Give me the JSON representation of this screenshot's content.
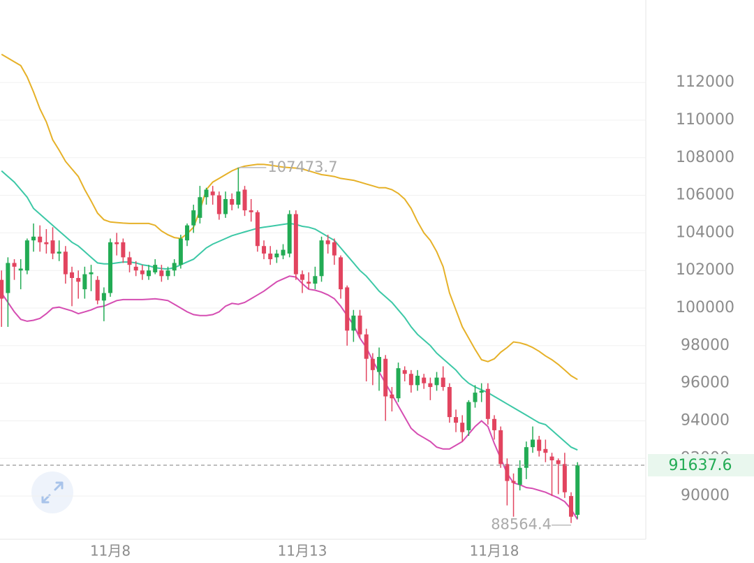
{
  "chart_data": {
    "type": "candlestick",
    "categories": [
      null,
      null,
      null,
      null,
      null,
      null,
      null,
      null,
      null,
      null,
      null,
      null,
      null,
      null,
      null,
      null,
      null,
      "11月8",
      null,
      null,
      null,
      null,
      null,
      null,
      null,
      null,
      null,
      null,
      null,
      null,
      null,
      null,
      null,
      null,
      null,
      null,
      null,
      null,
      null,
      null,
      null,
      null,
      null,
      null,
      null,
      null,
      null,
      "11月13",
      null,
      null,
      null,
      null,
      null,
      null,
      null,
      null,
      null,
      null,
      null,
      null,
      null,
      null,
      null,
      null,
      null,
      null,
      null,
      null,
      null,
      null,
      null,
      null,
      null,
      null,
      null,
      null,
      null,
      "11月18",
      null,
      null,
      null,
      null,
      null,
      null,
      null,
      null,
      null,
      null,
      null,
      null,
      null
    ],
    "open": [
      101500,
      100800,
      102400,
      102000,
      102000,
      103600,
      103800,
      103500,
      103600,
      102900,
      103000,
      101900,
      101600,
      101000,
      101800,
      101500,
      100400,
      100800,
      103500,
      103500,
      102700,
      102200,
      102000,
      101700,
      101900,
      102000,
      101700,
      102000,
      102300,
      103600,
      104400,
      104800,
      105900,
      106200,
      106000,
      105000,
      105800,
      105500,
      106300,
      105200,
      105100,
      103300,
      102900,
      102700,
      102800,
      102900,
      105000,
      101800,
      101400,
      101300,
      101700,
      103600,
      103500,
      102700,
      101100,
      98800,
      99600,
      98600,
      97300,
      96600,
      97300,
      95400,
      95200,
      96700,
      96500,
      95900,
      96300,
      96000,
      95900,
      96300,
      95800,
      94200,
      93900,
      93500,
      95000,
      95500,
      95700,
      94100,
      93500,
      91700,
      90800,
      90600,
      91500,
      92600,
      93000,
      92500,
      92100,
      91900,
      91700,
      90000,
      89000
    ],
    "high": [
      102000,
      102700,
      102600,
      102600,
      103700,
      104500,
      104400,
      104200,
      104300,
      103600,
      103300,
      102200,
      102000,
      102200,
      102300,
      101700,
      101100,
      103700,
      104000,
      103700,
      103000,
      102500,
      102300,
      102300,
      102600,
      102300,
      102200,
      102600,
      103900,
      104500,
      105500,
      106500,
      106400,
      106500,
      106200,
      106200,
      106100,
      107473.7,
      106500,
      105800,
      105200,
      103600,
      103300,
      103100,
      103400,
      105200,
      105200,
      102000,
      101900,
      102200,
      103800,
      103900,
      103700,
      102800,
      101200,
      99900,
      99900,
      98900,
      97600,
      97900,
      97500,
      95800,
      97100,
      96900,
      96700,
      96700,
      96500,
      96300,
      96600,
      96900,
      96000,
      94600,
      94300,
      95100,
      95900,
      96000,
      96000,
      94300,
      93700,
      92000,
      91200,
      91900,
      92900,
      93700,
      93200,
      93000,
      92300,
      92000,
      92300,
      90200,
      91800
    ],
    "low": [
      99000,
      99000,
      101500,
      101000,
      101800,
      103000,
      103000,
      102900,
      102600,
      102500,
      101300,
      100100,
      100500,
      100500,
      100900,
      100200,
      99300,
      100600,
      102800,
      102400,
      101900,
      101700,
      101500,
      101500,
      101800,
      101400,
      101500,
      101700,
      102100,
      103300,
      104000,
      104500,
      105500,
      105500,
      104700,
      104800,
      105200,
      105300,
      104900,
      104600,
      103000,
      102600,
      102300,
      102400,
      102600,
      102700,
      101500,
      100800,
      101000,
      101000,
      101400,
      102900,
      102300,
      100500,
      98000,
      98200,
      98400,
      96100,
      95900,
      95600,
      94000,
      94500,
      95000,
      96100,
      95500,
      95600,
      95700,
      95100,
      95600,
      95600,
      93900,
      93400,
      92900,
      93200,
      94700,
      95000,
      93800,
      93000,
      91500,
      89500,
      88900,
      90300,
      90900,
      92300,
      92100,
      91800,
      90000,
      90100,
      89900,
      88564.4,
      88800
    ],
    "close": [
      100500,
      102400,
      102200,
      102100,
      103600,
      103800,
      103500,
      103400,
      102900,
      103000,
      101800,
      101600,
      101400,
      101800,
      101900,
      100400,
      100800,
      103500,
      103400,
      102700,
      102300,
      102000,
      101800,
      102000,
      102300,
      101700,
      102000,
      102400,
      103700,
      104400,
      105200,
      105900,
      106300,
      106000,
      105000,
      105800,
      105500,
      106200,
      105200,
      105100,
      103300,
      102900,
      102600,
      102900,
      103100,
      105000,
      101800,
      101500,
      101300,
      101700,
      103600,
      103400,
      102800,
      101000,
      98800,
      99600,
      98600,
      97300,
      96700,
      97400,
      95300,
      95200,
      96800,
      96500,
      95900,
      96400,
      96000,
      95800,
      96300,
      95800,
      94200,
      93900,
      93400,
      95000,
      95500,
      95600,
      94100,
      93500,
      91700,
      90800,
      90700,
      91500,
      92600,
      93000,
      92400,
      92300,
      91900,
      91700,
      90200,
      88900,
      91637.6
    ],
    "up_color": "#22ab54",
    "down_color": "#e2445f",
    "bands": [
      {
        "color": "#e6b128",
        "values": [
          113500,
          113300,
          113100,
          112900,
          112300,
          111500,
          110600,
          109900,
          108950,
          108400,
          107800,
          107400,
          107000,
          106300,
          105700,
          105050,
          104700,
          104580,
          104550,
          104520,
          104500,
          104500,
          104500,
          104500,
          104400,
          104100,
          103900,
          103750,
          103700,
          103950,
          104300,
          105200,
          106300,
          106700,
          106900,
          107100,
          107300,
          107450,
          107550,
          107600,
          107650,
          107640,
          107600,
          107550,
          107500,
          107470,
          107450,
          107400,
          107300,
          107200,
          107100,
          107050,
          107000,
          106900,
          106850,
          106800,
          106700,
          106600,
          106500,
          106400,
          106400,
          106300,
          106100,
          105800,
          105300,
          104600,
          104000,
          103600,
          103000,
          102200,
          100800,
          99900,
          99000,
          98400,
          97800,
          97250,
          97150,
          97300,
          97650,
          97900,
          98200,
          98150,
          98050,
          97900,
          97700,
          97450,
          97250,
          97000,
          96700,
          96400,
          96200
        ]
      },
      {
        "color": "#3cc8a6",
        "values": [
          107300,
          107000,
          106700,
          106300,
          105900,
          105300,
          105000,
          104700,
          104400,
          104100,
          103800,
          103500,
          103300,
          103000,
          102700,
          102400,
          102350,
          102350,
          102400,
          102450,
          102450,
          102400,
          102300,
          102250,
          102150,
          102100,
          102080,
          102150,
          102300,
          102450,
          102600,
          102900,
          103200,
          103400,
          103550,
          103700,
          103850,
          103950,
          104050,
          104150,
          104250,
          104300,
          104350,
          104400,
          104450,
          104500,
          104450,
          104350,
          104300,
          104200,
          104000,
          103800,
          103600,
          103200,
          102800,
          102400,
          102000,
          101700,
          101300,
          100900,
          100600,
          100300,
          99900,
          99500,
          99000,
          98600,
          98300,
          98000,
          97600,
          97300,
          97000,
          96700,
          96300,
          96000,
          95800,
          95650,
          95500,
          95300,
          95100,
          94900,
          94700,
          94500,
          94300,
          94100,
          93900,
          93800,
          93500,
          93200,
          92900,
          92600,
          92450
        ]
      },
      {
        "color": "#d54db2",
        "values": [
          100800,
          100300,
          99800,
          99400,
          99300,
          99350,
          99450,
          99700,
          100000,
          100050,
          99950,
          99850,
          99700,
          99800,
          99900,
          100050,
          100100,
          100250,
          100400,
          100450,
          100450,
          100450,
          100450,
          100470,
          100490,
          100450,
          100400,
          100200,
          100000,
          99800,
          99650,
          99600,
          99600,
          99650,
          99800,
          100100,
          100250,
          100200,
          100300,
          100500,
          100700,
          100900,
          101150,
          101400,
          101550,
          101700,
          101650,
          101300,
          101000,
          100950,
          100850,
          100700,
          100500,
          100100,
          99600,
          99100,
          98400,
          97900,
          97200,
          96600,
          96000,
          95400,
          94800,
          94200,
          93600,
          93300,
          93100,
          92900,
          92600,
          92500,
          92500,
          92700,
          92900,
          93300,
          93700,
          94000,
          93700,
          92800,
          92000,
          91200,
          90700,
          90600,
          90450,
          90400,
          90300,
          90200,
          90050,
          89900,
          89700,
          89300,
          88750
        ]
      }
    ],
    "ylim": [
      87700,
      116390
    ],
    "yticks": [
      90000,
      92000,
      94000,
      96000,
      98000,
      100000,
      102000,
      104000,
      106000,
      108000,
      110000,
      112000
    ],
    "grid": true
  }
}
